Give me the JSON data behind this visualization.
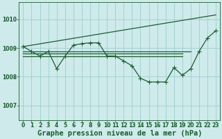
{
  "title": "Graphe pression niveau de la mer (hPa)",
  "background_color": "#ceeaea",
  "grid_color": "#9ecece",
  "line_color": "#1a5c30",
  "xlim": [
    -0.5,
    23.5
  ],
  "ylim": [
    1006.5,
    1010.6
  ],
  "yticks": [
    1007,
    1008,
    1009,
    1010
  ],
  "xticks": [
    0,
    1,
    2,
    3,
    4,
    5,
    6,
    7,
    8,
    9,
    10,
    11,
    12,
    13,
    14,
    15,
    16,
    17,
    18,
    19,
    20,
    21,
    22,
    23
  ],
  "line1_x": [
    0,
    1,
    2,
    3,
    4,
    5,
    6,
    7,
    8,
    9,
    10,
    11,
    12,
    13,
    14,
    15,
    16,
    17,
    18,
    19,
    20,
    21,
    22,
    23
  ],
  "line1_y": [
    1009.05,
    1008.88,
    1008.72,
    1008.88,
    1008.28,
    1008.72,
    1009.1,
    1009.15,
    1009.18,
    1009.18,
    1008.72,
    1008.72,
    1008.55,
    1008.38,
    1007.95,
    1007.82,
    1007.82,
    1007.82,
    1008.32,
    1008.05,
    1008.28,
    1008.88,
    1009.35,
    1009.6
  ],
  "line2_x": [
    0,
    23
  ],
  "line2_y": [
    1009.05,
    1010.15
  ],
  "hline_y1": 1008.82,
  "hline_y2": 1008.72,
  "hline_y3": 1008.88,
  "hline_x1_start": 0,
  "hline_x1_end": 19,
  "marker_size": 2.5,
  "font_color": "#1a5c30",
  "tick_fontsize": 5.5,
  "xlabel_fontsize": 7.5
}
